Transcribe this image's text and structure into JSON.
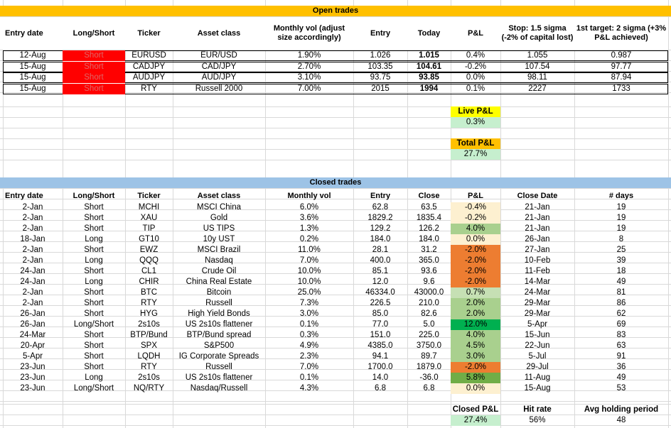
{
  "open": {
    "title": "Open trades",
    "headers": [
      "Entry date",
      "Long/Short",
      "Ticker",
      "Asset class",
      "Monthly vol (adjust size accordingly)",
      "Entry",
      "Today",
      "P&L",
      "Stop: 1.5 sigma (-2% of capital lost)",
      "1st target: 2 sigma (+3% P&L achieved)"
    ],
    "rows": [
      [
        "12-Aug",
        "Short",
        "EURUSD",
        "EUR/USD",
        "1.90%",
        "1.026",
        "1.015",
        "0.4%",
        "1.055",
        "0.987"
      ],
      [
        "15-Aug",
        "Short",
        "CADJPY",
        "CAD/JPY",
        "2.70%",
        "103.35",
        "104.61",
        "-0.2%",
        "107.54",
        "97.77"
      ],
      [
        "15-Aug",
        "Short",
        "AUDJPY",
        "AUD/JPY",
        "3.10%",
        "93.75",
        "93.85",
        "0.0%",
        "98.11",
        "87.94"
      ],
      [
        "15-Aug",
        "Short",
        "RTY",
        "Russell 2000",
        "7.00%",
        "2015",
        "1994",
        "0.1%",
        "2227",
        "1733"
      ]
    ],
    "live_pnl_label": "Live P&L",
    "live_pnl_value": "0.3%",
    "total_pnl_label": "Total P&L",
    "total_pnl_value": "27.7%"
  },
  "closed": {
    "title": "Closed trades",
    "headers": [
      "Entry date",
      "Long/Short",
      "Ticker",
      "Asset class",
      "Monthly vol",
      "Entry",
      "Close",
      "P&L",
      "Close Date",
      "# days"
    ],
    "rows": [
      [
        "2-Jan",
        "Short",
        "MCHI",
        "MSCI China",
        "6.0%",
        "62.8",
        "63.5",
        "-0.4%",
        "21-Jan",
        "19"
      ],
      [
        "2-Jan",
        "Short",
        "XAU",
        "Gold",
        "3.6%",
        "1829.2",
        "1835.4",
        "-0.2%",
        "21-Jan",
        "19"
      ],
      [
        "2-Jan",
        "Short",
        "TIP",
        "US TIPS",
        "1.3%",
        "129.2",
        "126.2",
        "4.0%",
        "21-Jan",
        "19"
      ],
      [
        "18-Jan",
        "Long",
        "GT10",
        "10y UST",
        "0.2%",
        "184.0",
        "184.0",
        "0.0%",
        "26-Jan",
        "8"
      ],
      [
        "2-Jan",
        "Short",
        "EWZ",
        "MSCI Brazil",
        "11.0%",
        "28.1",
        "31.2",
        "-2.0%",
        "27-Jan",
        "25"
      ],
      [
        "2-Jan",
        "Long",
        "QQQ",
        "Nasdaq",
        "7.0%",
        "400.0",
        "365.0",
        "-2.0%",
        "10-Feb",
        "39"
      ],
      [
        "24-Jan",
        "Short",
        "CL1",
        "Crude Oil",
        "10.0%",
        "85.1",
        "93.6",
        "-2.0%",
        "11-Feb",
        "18"
      ],
      [
        "24-Jan",
        "Long",
        "CHIR",
        "China Real Estate",
        "10.0%",
        "12.0",
        "9.6",
        "-2.0%",
        "14-Mar",
        "49"
      ],
      [
        "2-Jan",
        "Short",
        "BTC",
        "Bitcoin",
        "25.0%",
        "46334.0",
        "43000.0",
        "0.7%",
        "24-Mar",
        "81"
      ],
      [
        "2-Jan",
        "Short",
        "RTY",
        "Russell",
        "7.3%",
        "226.5",
        "210.0",
        "2.0%",
        "29-Mar",
        "86"
      ],
      [
        "26-Jan",
        "Short",
        "HYG",
        "High Yield Bonds",
        "3.0%",
        "85.0",
        "82.6",
        "2.0%",
        "29-Mar",
        "62"
      ],
      [
        "26-Jan",
        "Long/Short",
        "2s10s",
        "US 2s10s flattener",
        "0.1%",
        "77.0",
        "5.0",
        "12.0%",
        "5-Apr",
        "69"
      ],
      [
        "24-Mar",
        "Short",
        "BTP/Bund",
        "BTP/Bund spread",
        "0.3%",
        "151.0",
        "225.0",
        "4.0%",
        "15-Jun",
        "83"
      ],
      [
        "20-Apr",
        "Short",
        "SPX",
        "S&P500",
        "4.9%",
        "4385.0",
        "3750.0",
        "4.5%",
        "22-Jun",
        "63"
      ],
      [
        "5-Apr",
        "Short",
        "LQDH",
        "IG Corporate Spreads",
        "2.3%",
        "94.1",
        "89.7",
        "3.0%",
        "5-Jul",
        "91"
      ],
      [
        "23-Jun",
        "Short",
        "RTY",
        "Russell",
        "7.0%",
        "1700.0",
        "1879.0",
        "-2.0%",
        "29-Jul",
        "36"
      ],
      [
        "23-Jun",
        "Long",
        "2s10s",
        "US 2s10s flattener",
        "0.1%",
        "14.0",
        "-36.0",
        "5.8%",
        "11-Aug",
        "49"
      ],
      [
        "23-Jun",
        "Long/Short",
        "NQ/RTY",
        "Nasdaq/Russell",
        "4.3%",
        "6.8",
        "6.8",
        "0.0%",
        "15-Aug",
        "53"
      ]
    ],
    "pnl_colors": [
      "#fdf0d0",
      "#fdf0d0",
      "#a9d08e",
      "#fdf0d0",
      "#ed7d31",
      "#ed7d31",
      "#ed7d31",
      "#ed7d31",
      "#c6e0b4",
      "#a9d08e",
      "#a9d08e",
      "#00b050",
      "#a9d08e",
      "#a9d08e",
      "#a9d08e",
      "#ed7d31",
      "#70ad47",
      "#fdf0d0"
    ],
    "summary": {
      "closed_pnl_label": "Closed P&L",
      "closed_pnl_value": "27.4%",
      "hit_rate_label": "Hit rate",
      "hit_rate_value": "56%",
      "avg_hold_label": "Avg holding period",
      "avg_hold_value": "48"
    }
  },
  "colors": {
    "open_band": "#ffc000",
    "closed_band": "#9dc3e6",
    "short_red": "#ff0000",
    "live_label_bg": "#ffff00",
    "total_label_bg": "#ffc000",
    "value_green_bg": "#c6efce"
  }
}
